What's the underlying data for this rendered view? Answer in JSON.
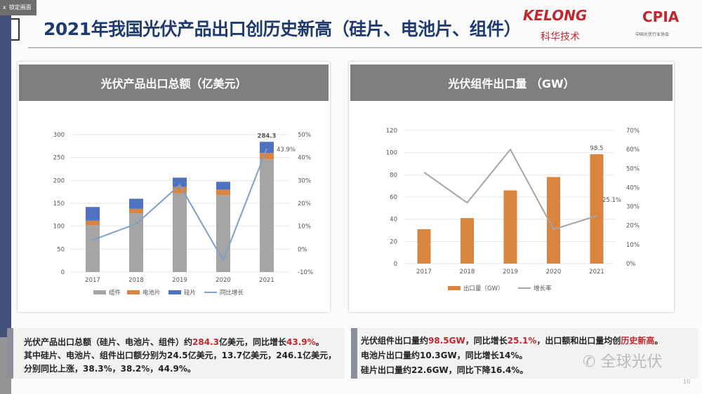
{
  "lock_label": "锁定画面",
  "title": "2021年我国光伏产品出口创历史新高（硅片、电池片、组件）",
  "logos": {
    "kelong": "KELONG",
    "kelong_cn": "科华技术",
    "cpia": "CPIA",
    "cpia_sub": "中国光伏行业协会"
  },
  "left_panel": {
    "title": "光伏产品出口总额（亿美元）"
  },
  "right_panel": {
    "title": "光伏组件出口量 （GW）"
  },
  "left_text": {
    "l1a": "光伏产品出口总额（硅片、电池片、组件）约",
    "l1b": "284.3",
    "l1c": "亿美元，同比增长",
    "l1d": "43.9%",
    "l1e": "。",
    "l2": "其中硅片、电池片、组件出口额分别为24.5亿美元，13.7亿美元，246.1亿美元，",
    "l3": "分别同比上涨，38.3%，38.2%，44.9%。"
  },
  "right_text": {
    "l1a": "光伏组件出口量约",
    "l1b": "98.5GW",
    "l1c": "，同比增长",
    "l1d": "25.1%",
    "l1e": "，出口额和出口量均创",
    "l1f": "历史新高",
    "l1g": "。",
    "l2": "电池片出口量约10.3GW，同比增长14%。",
    "l3": "硅片出口量约22.6GW，同比下降16.4%。"
  },
  "watermark": "全球光伏",
  "page_number": "10",
  "chart_data": [
    {
      "type": "bar",
      "stacked": true,
      "categories": [
        "2017",
        "2018",
        "2019",
        "2020",
        "2021"
      ],
      "series": [
        {
          "name": "组件",
          "color": "#a5a5a5",
          "values": [
            102,
            128,
            172,
            168,
            246.1
          ]
        },
        {
          "name": "电池片",
          "color": "#d9843f",
          "values": [
            10,
            10,
            14,
            12,
            13.7
          ]
        },
        {
          "name": "硅片",
          "color": "#4f73c0",
          "values": [
            30,
            22,
            20,
            17,
            24.5
          ]
        }
      ],
      "line": {
        "name": "同比增长",
        "color": "#7f9fc6",
        "values": [
          4,
          11,
          28,
          -5,
          43.9
        ],
        "axis": "right"
      },
      "ylim": [
        0,
        300
      ],
      "yticks": [
        "0",
        "50",
        "100",
        "150",
        "200",
        "250",
        "300"
      ],
      "y2lim": [
        -10,
        50
      ],
      "y2ticks": [
        "-10%",
        "0%",
        "10%",
        "20%",
        "30%",
        "40%",
        "50%"
      ],
      "labels": {
        "total_2021": "284.3",
        "growth_2021": "43.9%"
      }
    },
    {
      "type": "bar",
      "categories": [
        "2017",
        "2018",
        "2019",
        "2020",
        "2021"
      ],
      "series": [
        {
          "name": "出口量（GW）",
          "color": "#d9843f",
          "values": [
            31,
            41,
            66,
            78,
            98.5
          ]
        }
      ],
      "line": {
        "name": "增长率",
        "color": "#a5a5a5",
        "values": [
          48,
          32,
          60,
          18,
          25.1
        ],
        "axis": "right"
      },
      "ylim": [
        0,
        120
      ],
      "yticks": [
        "0",
        "20",
        "40",
        "60",
        "80",
        "100",
        "120"
      ],
      "y2lim": [
        0,
        70
      ],
      "y2ticks": [
        "0%",
        "10%",
        "20%",
        "30%",
        "40%",
        "50%",
        "60%",
        "70%"
      ],
      "labels": {
        "value_2021": "98.5",
        "growth_2021": "25.1%"
      }
    }
  ]
}
